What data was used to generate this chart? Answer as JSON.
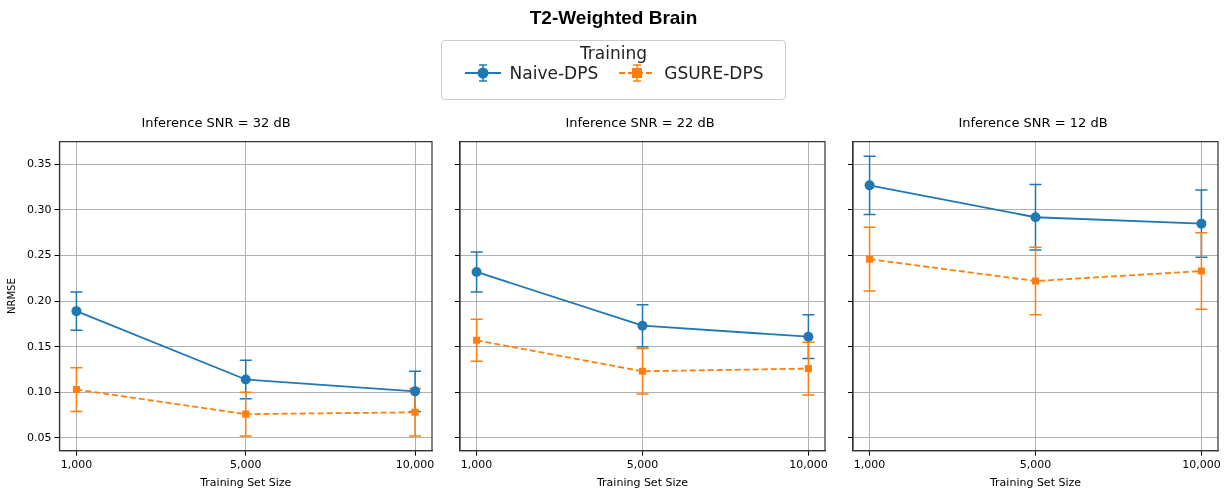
{
  "chart_data": [
    {
      "type": "line",
      "title": "Inference SNR = 32 dB",
      "annotations": [
        "T2-Weighted Brain"
      ],
      "xlabel": "Training Set Size",
      "ylabel": "NRMSE",
      "legend_title": "Training",
      "legend": "top",
      "grid": true,
      "categories": [
        "1,000",
        "5,000",
        "10,000"
      ],
      "ylim": [
        0.036,
        0.375
      ],
      "yticks": [
        {
          "value": 0.05,
          "label": "0.05"
        },
        {
          "value": 0.1,
          "label": "0.10"
        },
        {
          "value": 0.15,
          "label": "0.15"
        },
        {
          "value": 0.2,
          "label": "0.20"
        },
        {
          "value": 0.25,
          "label": "0.25"
        },
        {
          "value": 0.3,
          "label": "0.30"
        },
        {
          "value": 0.35,
          "label": "0.35"
        }
      ],
      "series": [
        {
          "name": "Naive-DPS",
          "color": "#1f77b4",
          "marker": "circle",
          "line_style": "solid",
          "values": [
            0.189,
            0.114,
            0.101
          ],
          "errors": [
            [
              0.168,
              0.21
            ],
            [
              0.093,
              0.135
            ],
            [
              0.079,
              0.123
            ]
          ]
        },
        {
          "name": "GSURE-DPS",
          "color": "#ff7f0e",
          "marker": "square",
          "line_style": "dashed",
          "values": [
            0.103,
            0.076,
            0.078
          ],
          "errors": [
            [
              0.079,
              0.127
            ],
            [
              0.052,
              0.1
            ],
            [
              0.052,
              0.104
            ]
          ]
        }
      ]
    },
    {
      "type": "line",
      "title": "Inference SNR = 22 dB",
      "xlabel": "Training Set Size",
      "grid": true,
      "tick_labels": "x",
      "categories": [
        "1,000",
        "5,000",
        "10,000"
      ],
      "ylim": [
        0.036,
        0.375
      ],
      "yticks": [
        {
          "value": 0.05,
          "label": null
        },
        {
          "value": 0.1,
          "label": null
        },
        {
          "value": 0.15,
          "label": null
        },
        {
          "value": 0.2,
          "label": null
        },
        {
          "value": 0.25,
          "label": null
        },
        {
          "value": 0.3,
          "label": null
        },
        {
          "value": 0.35,
          "label": null
        }
      ],
      "series": [
        {
          "color": "#1f77b4",
          "marker": "circle",
          "line_style": "solid",
          "values": [
            0.232,
            0.173,
            0.161
          ],
          "errors": [
            [
              0.21,
              0.254
            ],
            [
              0.15,
              0.196
            ],
            [
              0.137,
              0.185
            ]
          ]
        },
        {
          "color": "#ff7f0e",
          "marker": "square",
          "line_style": "dashed",
          "values": [
            0.157,
            0.123,
            0.126
          ],
          "errors": [
            [
              0.134,
              0.18
            ],
            [
              0.098,
              0.148
            ],
            [
              0.097,
              0.155
            ]
          ]
        }
      ]
    },
    {
      "type": "line",
      "title": "Inference SNR = 12 dB",
      "xlabel": "Training Set Size",
      "grid": true,
      "tick_labels": "x",
      "categories": [
        "1,000",
        "5,000",
        "10,000"
      ],
      "ylim": [
        0.036,
        0.375
      ],
      "yticks": [
        {
          "value": 0.05,
          "label": null
        },
        {
          "value": 0.1,
          "label": null
        },
        {
          "value": 0.15,
          "label": null
        },
        {
          "value": 0.2,
          "label": null
        },
        {
          "value": 0.25,
          "label": null
        },
        {
          "value": 0.3,
          "label": null
        },
        {
          "value": 0.35,
          "label": null
        }
      ],
      "series": [
        {
          "color": "#1f77b4",
          "marker": "circle",
          "line_style": "solid",
          "values": [
            0.327,
            0.292,
            0.285
          ],
          "errors": [
            [
              0.295,
              0.359
            ],
            [
              0.256,
              0.328
            ],
            [
              0.248,
              0.322
            ]
          ]
        },
        {
          "color": "#ff7f0e",
          "marker": "square",
          "line_style": "dashed",
          "values": [
            0.246,
            0.222,
            0.233
          ],
          "errors": [
            [
              0.211,
              0.281
            ],
            [
              0.185,
              0.259
            ],
            [
              0.191,
              0.275
            ]
          ]
        }
      ]
    }
  ]
}
